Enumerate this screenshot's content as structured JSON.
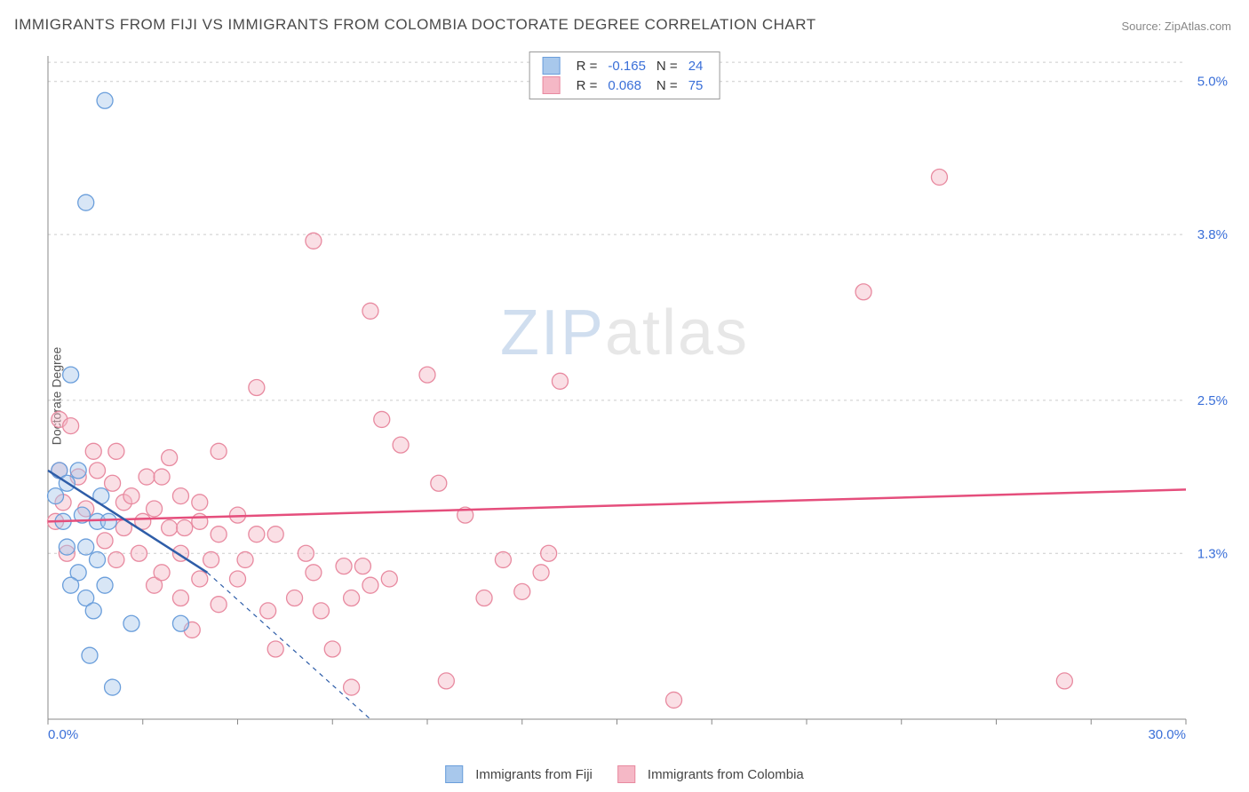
{
  "title": "IMMIGRANTS FROM FIJI VS IMMIGRANTS FROM COLOMBIA DOCTORATE DEGREE CORRELATION CHART",
  "source": "Source: ZipAtlas.com",
  "ylabel": "Doctorate Degree",
  "watermark": {
    "z": "ZIP",
    "rest": "atlas"
  },
  "colors": {
    "fiji_fill": "#a8c8ec",
    "fiji_stroke": "#6a9edb",
    "fiji_line": "#2e5da8",
    "col_fill": "#f5b8c6",
    "col_stroke": "#e88aa0",
    "col_line": "#e54e7c",
    "grid": "#cccccc",
    "axis": "#888888",
    "tick_text": "#3a6fd8"
  },
  "chart": {
    "type": "scatter_correlation",
    "xlim": [
      0,
      30
    ],
    "ylim": [
      0,
      5.2
    ],
    "yticks": [
      {
        "v": 1.3,
        "label": "1.3%"
      },
      {
        "v": 2.5,
        "label": "2.5%"
      },
      {
        "v": 3.8,
        "label": "3.8%"
      },
      {
        "v": 5.0,
        "label": "5.0%"
      }
    ],
    "xticks_minor": [
      0,
      2.5,
      5,
      7.5,
      10,
      12.5,
      15,
      17.5,
      20,
      22.5,
      25,
      27.5,
      30
    ],
    "xaxis_left_label": "0.0%",
    "xaxis_right_label": "30.0%",
    "marker_radius": 9,
    "marker_fill_opacity": 0.45,
    "marker_stroke_width": 1.3,
    "line_width": 2.5
  },
  "legend_top": [
    {
      "swatch_fill": "#a8c8ec",
      "swatch_stroke": "#6a9edb",
      "r_label": "R =",
      "r": "-0.165",
      "n_label": "N =",
      "n": "24"
    },
    {
      "swatch_fill": "#f5b8c6",
      "swatch_stroke": "#e88aa0",
      "r_label": "R =",
      "r": "0.068",
      "n_label": "N =",
      "n": "75"
    }
  ],
  "legend_bottom": [
    {
      "swatch_fill": "#a8c8ec",
      "swatch_stroke": "#6a9edb",
      "label": "Immigrants from Fiji"
    },
    {
      "swatch_fill": "#f5b8c6",
      "swatch_stroke": "#e88aa0",
      "label": "Immigrants from Colombia"
    }
  ],
  "series": {
    "fiji": {
      "points": [
        [
          1.5,
          4.85
        ],
        [
          1.0,
          4.05
        ],
        [
          0.6,
          2.7
        ],
        [
          0.3,
          1.95
        ],
        [
          0.5,
          1.85
        ],
        [
          0.2,
          1.75
        ],
        [
          0.8,
          1.95
        ],
        [
          0.9,
          1.6
        ],
        [
          1.3,
          1.55
        ],
        [
          1.0,
          1.35
        ],
        [
          0.5,
          1.35
        ],
        [
          1.3,
          1.25
        ],
        [
          0.8,
          1.15
        ],
        [
          1.6,
          1.55
        ],
        [
          0.6,
          1.05
        ],
        [
          1.0,
          0.95
        ],
        [
          1.5,
          1.05
        ],
        [
          1.2,
          0.85
        ],
        [
          2.2,
          0.75
        ],
        [
          3.5,
          0.75
        ],
        [
          1.1,
          0.5
        ],
        [
          1.7,
          0.25
        ],
        [
          1.4,
          1.75
        ],
        [
          0.4,
          1.55
        ]
      ],
      "trend": {
        "x1": 0,
        "y1": 1.95,
        "x2": 4.2,
        "y2": 1.15,
        "x2_ext": 8.5,
        "y2_ext": 0.0
      }
    },
    "colombia": {
      "points": [
        [
          23.5,
          4.25
        ],
        [
          7.0,
          3.75
        ],
        [
          21.5,
          3.35
        ],
        [
          8.5,
          3.2
        ],
        [
          10.0,
          2.7
        ],
        [
          13.5,
          2.65
        ],
        [
          5.5,
          2.6
        ],
        [
          0.3,
          2.35
        ],
        [
          0.6,
          2.3
        ],
        [
          8.8,
          2.35
        ],
        [
          1.2,
          2.1
        ],
        [
          1.8,
          2.1
        ],
        [
          3.2,
          2.05
        ],
        [
          4.5,
          2.1
        ],
        [
          9.3,
          2.15
        ],
        [
          0.3,
          1.95
        ],
        [
          0.8,
          1.9
        ],
        [
          1.3,
          1.95
        ],
        [
          1.7,
          1.85
        ],
        [
          2.0,
          1.7
        ],
        [
          2.6,
          1.9
        ],
        [
          2.8,
          1.65
        ],
        [
          3.0,
          1.9
        ],
        [
          3.5,
          1.75
        ],
        [
          4.0,
          1.7
        ],
        [
          10.3,
          1.85
        ],
        [
          0.2,
          1.55
        ],
        [
          2.0,
          1.5
        ],
        [
          2.5,
          1.55
        ],
        [
          3.2,
          1.5
        ],
        [
          3.6,
          1.5
        ],
        [
          4.0,
          1.55
        ],
        [
          4.5,
          1.45
        ],
        [
          5.0,
          1.6
        ],
        [
          5.5,
          1.45
        ],
        [
          6.0,
          1.45
        ],
        [
          11.0,
          1.6
        ],
        [
          0.5,
          1.3
        ],
        [
          1.8,
          1.25
        ],
        [
          2.4,
          1.3
        ],
        [
          3.5,
          1.3
        ],
        [
          4.0,
          1.1
        ],
        [
          4.3,
          1.25
        ],
        [
          5.0,
          1.1
        ],
        [
          5.2,
          1.25
        ],
        [
          6.8,
          1.3
        ],
        [
          7.0,
          1.15
        ],
        [
          7.8,
          1.2
        ],
        [
          8.3,
          1.2
        ],
        [
          8.5,
          1.05
        ],
        [
          9.0,
          1.1
        ],
        [
          12.0,
          1.25
        ],
        [
          13.0,
          1.15
        ],
        [
          12.5,
          1.0
        ],
        [
          13.2,
          1.3
        ],
        [
          2.8,
          1.05
        ],
        [
          3.5,
          0.95
        ],
        [
          4.5,
          0.9
        ],
        [
          5.8,
          0.85
        ],
        [
          6.5,
          0.95
        ],
        [
          7.2,
          0.85
        ],
        [
          8.0,
          0.95
        ],
        [
          3.8,
          0.7
        ],
        [
          6.0,
          0.55
        ],
        [
          7.5,
          0.55
        ],
        [
          8.0,
          0.25
        ],
        [
          10.5,
          0.3
        ],
        [
          16.5,
          0.15
        ],
        [
          26.8,
          0.3
        ],
        [
          2.2,
          1.75
        ],
        [
          1.0,
          1.65
        ],
        [
          0.4,
          1.7
        ],
        [
          1.5,
          1.4
        ],
        [
          3.0,
          1.15
        ],
        [
          11.5,
          0.95
        ]
      ],
      "trend": {
        "x1": 0,
        "y1": 1.55,
        "x2": 30,
        "y2": 1.8
      }
    }
  }
}
